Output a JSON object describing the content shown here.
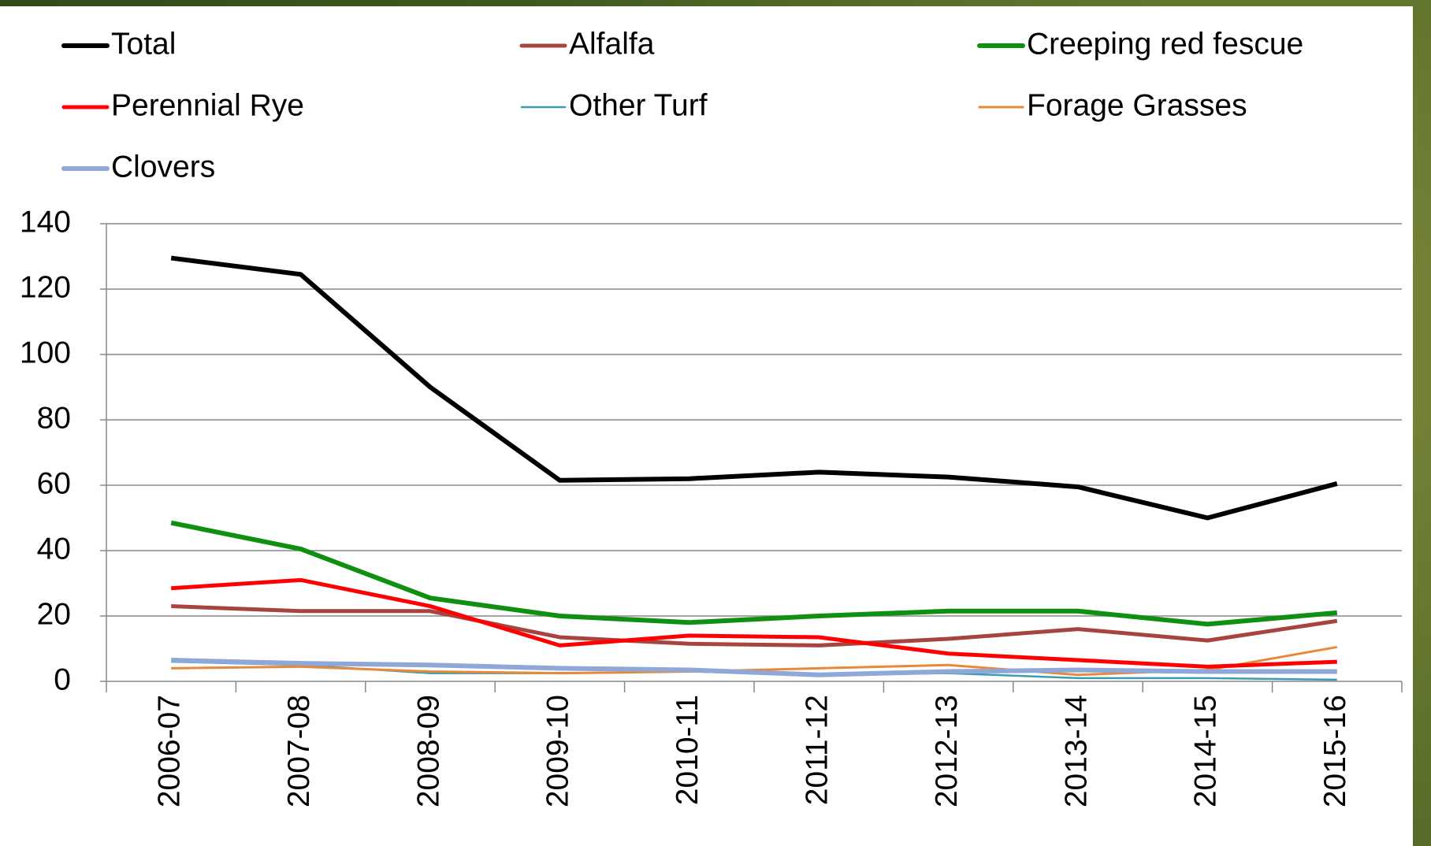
{
  "chart_data": {
    "type": "line",
    "categories": [
      "2006-07",
      "2007-08",
      "2008-09",
      "2009-10",
      "2010-11",
      "2011-12",
      "2012-13",
      "2013-14",
      "2014-15",
      "2015-16"
    ],
    "series": [
      {
        "name": "Total",
        "color": "#000000",
        "values": [
          129.5,
          124.5,
          90,
          61.5,
          62,
          64,
          62.5,
          59.5,
          50,
          60.5
        ]
      },
      {
        "name": "Alfalfa",
        "color": "#a84440",
        "values": [
          23,
          21.5,
          21.5,
          13.5,
          11.5,
          11,
          13,
          16,
          12.5,
          18.5
        ]
      },
      {
        "name": "Creeping red fescue",
        "color": "#109010",
        "values": [
          48.5,
          40.5,
          25.5,
          20,
          18,
          20,
          21.5,
          21.5,
          17.5,
          21
        ]
      },
      {
        "name": "Perennial Rye",
        "color": "#ff0000",
        "values": [
          28.5,
          31,
          23,
          11,
          14,
          13.5,
          8.5,
          6.5,
          4.5,
          6
        ]
      },
      {
        "name": "Other Turf",
        "color": "#3b9bb0",
        "values": [
          6,
          5,
          2.5,
          2.5,
          3,
          2,
          2.5,
          1,
          1,
          0.5
        ]
      },
      {
        "name": "Forage Grasses",
        "color": "#e8893a",
        "values": [
          4,
          4.5,
          3,
          2.5,
          3,
          4,
          5,
          2,
          3.5,
          10.5
        ]
      },
      {
        "name": "Clovers",
        "color": "#8fa8d8",
        "values": [
          6.5,
          5.5,
          5,
          4,
          3.5,
          2,
          3,
          3.5,
          3,
          3
        ]
      }
    ],
    "ylim": [
      0,
      140
    ],
    "yticks": [
      0,
      20,
      40,
      60,
      80,
      100,
      120,
      140
    ],
    "grid": true,
    "legend": "top"
  }
}
